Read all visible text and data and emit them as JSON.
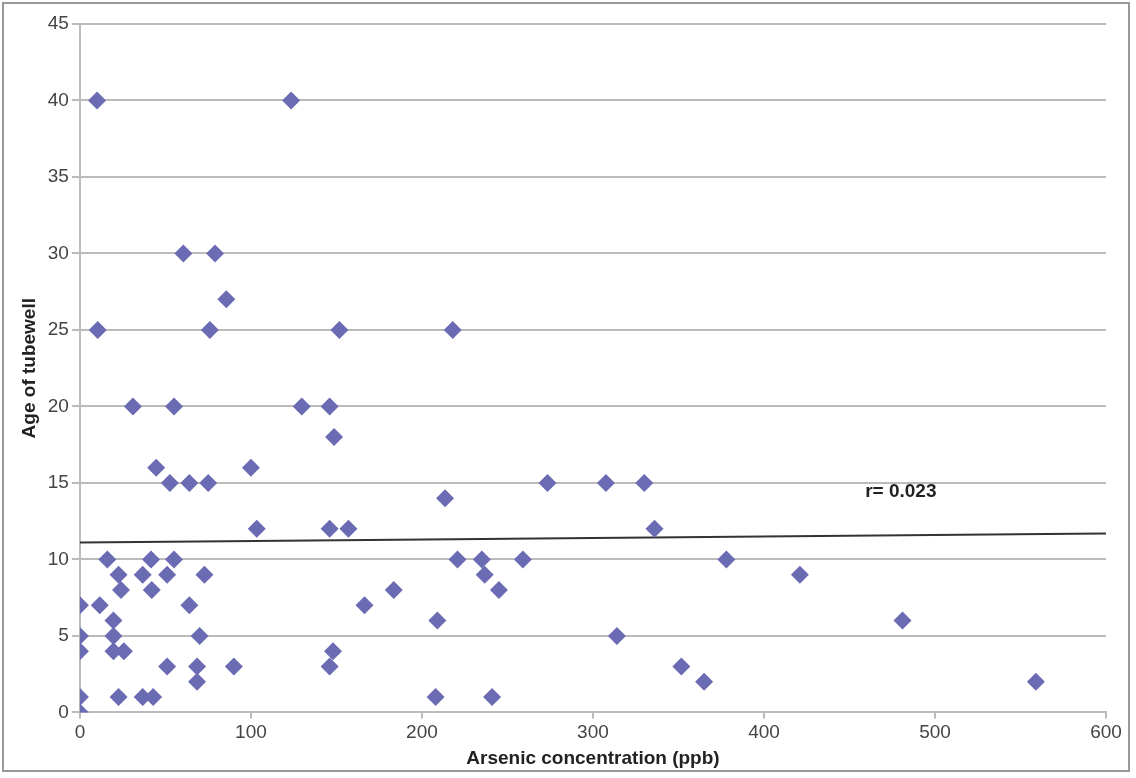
{
  "chart_data": {
    "type": "scatter",
    "xlabel": "Arsenic concentration (ppb)",
    "ylabel": "Age of tubewell",
    "xlim": [
      0,
      600
    ],
    "xticks": [
      0,
      100,
      200,
      300,
      400,
      500,
      600
    ],
    "ylim": [
      0,
      45
    ],
    "yticks": [
      0,
      5,
      10,
      15,
      20,
      25,
      30,
      35,
      40,
      45
    ],
    "grid": "y",
    "legend": false,
    "marker": "diamond",
    "annotations": [
      "r= 0.023"
    ],
    "series": [
      {
        "color": "#6b6bb3",
        "x": [
          10,
          123.5,
          60.5,
          79,
          85.6,
          10.4,
          76,
          151.7,
          218,
          31,
          55,
          129.7,
          146,
          148.6,
          44.6,
          100,
          52.6,
          64,
          75,
          273.4,
          307.6,
          330,
          213.5,
          103.4,
          146,
          157,
          336,
          16,
          41.6,
          55,
          22.6,
          36.7,
          51,
          72.8,
          24,
          42,
          0,
          11.6,
          64,
          166.4,
          19.6,
          0,
          19.6,
          70,
          0,
          19.6,
          25.7,
          51,
          68.5,
          68.5,
          90,
          148,
          146,
          0,
          0,
          22.6,
          36.7,
          42.8,
          220.8,
          235,
          236.7,
          245,
          259,
          378,
          183.5,
          209,
          314,
          351.7,
          365,
          208,
          241,
          421,
          481,
          559
        ],
        "values": [
          40,
          40,
          30,
          30,
          27,
          25,
          25,
          25,
          25,
          20,
          20,
          20,
          20,
          18,
          16,
          16,
          15,
          15,
          15,
          15,
          15,
          15,
          14,
          12,
          12,
          12,
          12,
          10,
          10,
          10,
          9,
          9,
          9,
          9,
          8,
          8,
          7,
          7,
          7,
          7,
          6,
          5,
          5,
          5,
          4,
          4,
          4,
          3,
          3,
          2,
          3,
          4,
          3,
          1,
          0,
          1,
          1,
          1,
          10,
          10,
          9,
          8,
          10,
          10,
          8,
          6,
          5,
          3,
          2,
          1,
          1,
          9,
          6,
          2
        ]
      },
      {
        "type": "line",
        "color": "#333333",
        "marker": "none",
        "x": [
          0,
          600
        ],
        "values": [
          11.1,
          11.7
        ]
      }
    ]
  }
}
